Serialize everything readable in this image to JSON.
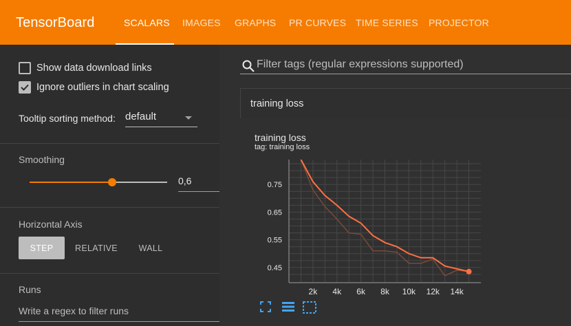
{
  "app": {
    "title": "TensorBoard"
  },
  "tabs": [
    {
      "label": "SCALARS",
      "active": true
    },
    {
      "label": "IMAGES",
      "active": false
    },
    {
      "label": "GRAPHS",
      "active": false
    },
    {
      "label": "PR CURVES",
      "active": false
    },
    {
      "label": "TIME SERIES",
      "active": false
    },
    {
      "label": "PROJECTOR",
      "active": false
    }
  ],
  "sidebar": {
    "show_download_links": {
      "label": "Show data download links",
      "checked": false
    },
    "ignore_outliers": {
      "label": "Ignore outliers in chart scaling",
      "checked": true
    },
    "tooltip_sorting": {
      "label": "Tooltip sorting method:",
      "value": "default"
    },
    "smoothing": {
      "label": "Smoothing",
      "value": "0,6",
      "fraction": 0.6
    },
    "horizontal_axis": {
      "label": "Horizontal Axis",
      "options": [
        "STEP",
        "RELATIVE",
        "WALL"
      ],
      "selected": "STEP"
    },
    "runs": {
      "label": "Runs",
      "placeholder": "Write a regex to filter runs"
    }
  },
  "filter": {
    "placeholder": "Filter tags (regular expressions supported)"
  },
  "group": {
    "title": "training loss"
  },
  "chart": {
    "title": "training loss",
    "tag": "tag: training loss"
  },
  "colors": {
    "accent": "#f57c00",
    "series": "#ff7043",
    "raw_series": "#7a4a3a"
  },
  "chart_data": {
    "type": "line",
    "title": "training loss",
    "subtitle": "tag: training loss",
    "xlabel": "",
    "ylabel": "",
    "x_ticks": [
      "2k",
      "4k",
      "6k",
      "8k",
      "10k",
      "12k",
      "14k"
    ],
    "y_ticks": [
      "0.45",
      "0.55",
      "0.65",
      "0.75"
    ],
    "xlim": [
      0,
      16000
    ],
    "ylim": [
      0.395,
      0.84
    ],
    "grid": true,
    "series": [
      {
        "x": [
          1000,
          2000,
          3000,
          4000,
          5000,
          6000,
          7000,
          8000,
          9000,
          10000,
          11000,
          12000,
          13000,
          14000,
          15000
        ],
        "values": [
          0.84,
          0.73,
          0.67,
          0.625,
          0.575,
          0.57,
          0.51,
          0.51,
          0.505,
          0.465,
          0.465,
          0.48,
          0.42,
          0.44,
          0.435
        ]
      },
      {
        "x": [
          1000,
          2000,
          3000,
          4000,
          5000,
          6000,
          7000,
          8000,
          9000,
          10000,
          11000,
          12000,
          13000,
          14000,
          15000
        ],
        "values": [
          0.84,
          0.76,
          0.71,
          0.675,
          0.635,
          0.61,
          0.565,
          0.54,
          0.525,
          0.5,
          0.485,
          0.485,
          0.455,
          0.445,
          0.435
        ]
      }
    ]
  }
}
